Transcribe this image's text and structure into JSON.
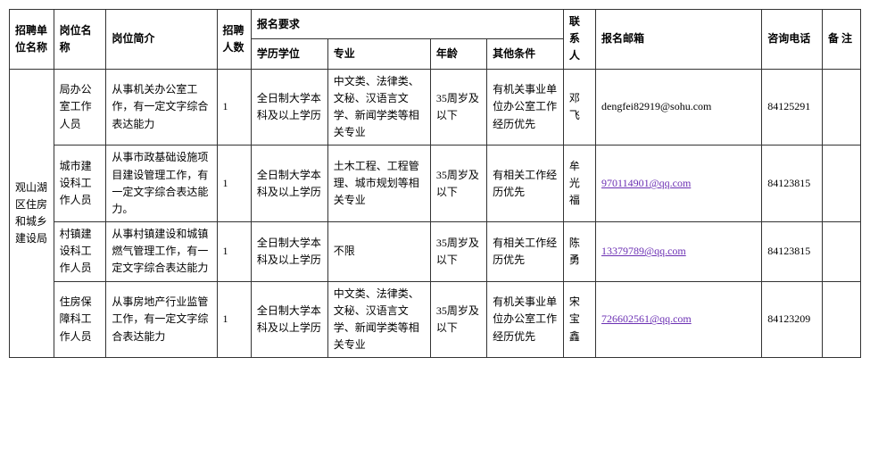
{
  "headers": {
    "group_req": "报名要求",
    "unit": "招聘单位名称",
    "post": "岗位名称",
    "desc": "岗位简介",
    "num": "招聘人数",
    "edu": "学历学位",
    "major": "专业",
    "age": "年龄",
    "other": "其他条件",
    "contact": "联系人",
    "email": "报名邮箱",
    "phone": "咨询电话",
    "note": "备 注"
  },
  "unit_name": "观山湖区住房和城乡建设局",
  "rows": [
    {
      "post": "局办公室工作人员",
      "desc": "从事机关办公室工作，有一定文字综合表达能力",
      "num": "1",
      "edu": "全日制大学本科及以上学历",
      "major": "中文类、法律类、文秘、汉语言文学、新闻学类等相关专业",
      "age": "35周岁及以下",
      "other": "有机关事业单位办公室工作经历优先",
      "contact": "邓飞",
      "email": "dengfei82919@sohu.com",
      "email_style": "plain",
      "phone": "84125291"
    },
    {
      "post": "城市建设科工作人员",
      "desc": "从事市政基础设施项目建设管理工作，有一定文字综合表达能力。",
      "num": "1",
      "edu": "全日制大学本科及以上学历",
      "major": "土木工程、工程管理、城市规划等相关专业",
      "age": "35周岁及以下",
      "other": "有相关工作经历优先",
      "contact": "牟光福",
      "email": "970114901@qq.com",
      "email_style": "link",
      "phone": "84123815"
    },
    {
      "post": "村镇建设科工作人员",
      "desc": "从事村镇建设和城镇燃气管理工作，有一定文字综合表达能力",
      "num": "1",
      "edu": "全日制大学本科及以上学历",
      "major": "不限",
      "age": "35周岁及以下",
      "other": "有相关工作经历优先",
      "contact": "陈勇",
      "email": "13379789@qq.com",
      "email_style": "link",
      "phone": "84123815"
    },
    {
      "post": "住房保障科工作人员",
      "desc": "从事房地产行业监管工作，有一定文字综合表达能力",
      "num": "1",
      "edu": "全日制大学本科及以上学历",
      "major": "中文类、法律类、文秘、汉语言文学、新闻学类等相关专业",
      "age": "35周岁及以下",
      "other": "有机关事业单位办公室工作经历优先",
      "contact": "宋宝鑫",
      "email": "726602561@qq.com",
      "email_style": "link",
      "phone": "84123209"
    }
  ]
}
